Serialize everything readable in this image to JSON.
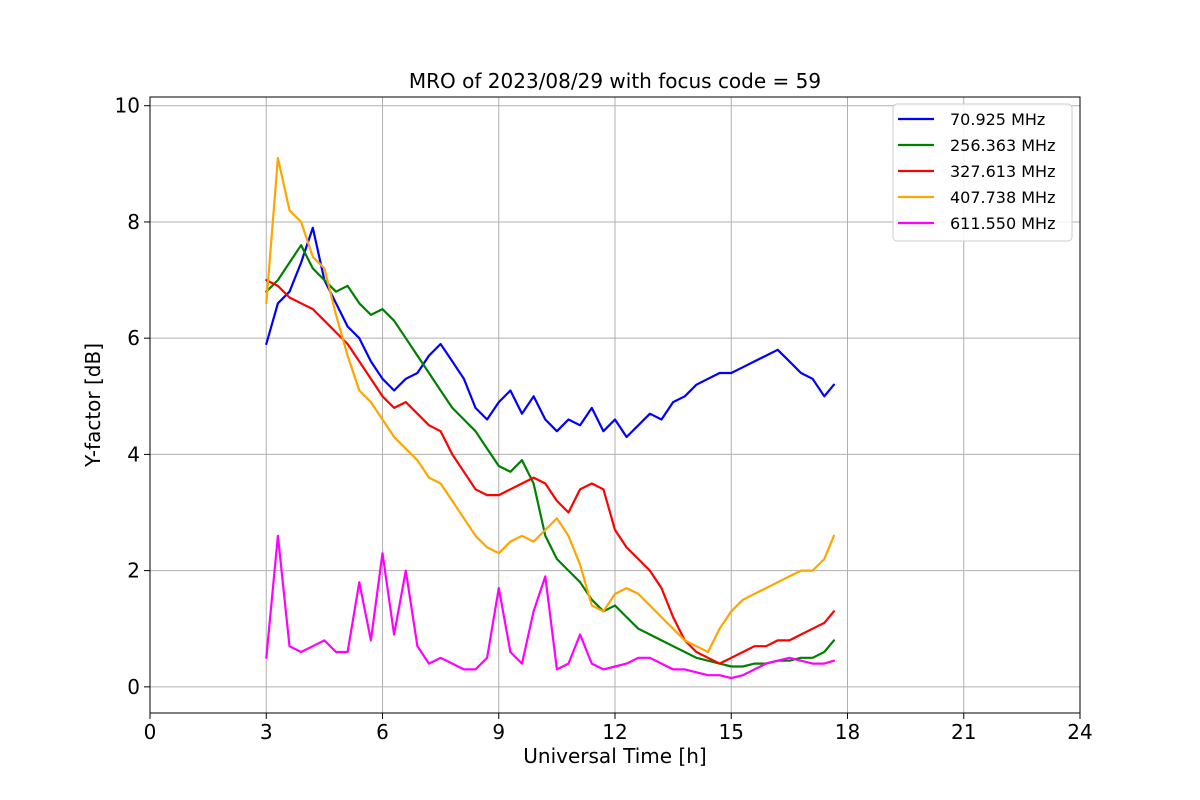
{
  "chart_data": {
    "type": "line",
    "title": "MRO of 2023/08/29 with focus code = 59",
    "xlabel": "Universal Time [h]",
    "ylabel": "Y-factor [dB]",
    "xlim": [
      0,
      24
    ],
    "ylim": [
      -0.45,
      10.15
    ],
    "xticks": [
      0,
      3,
      6,
      9,
      12,
      15,
      18,
      21,
      24
    ],
    "yticks": [
      0,
      2,
      4,
      6,
      8,
      10
    ],
    "grid": true,
    "legend_position": "top-right",
    "series": [
      {
        "name": " 70.925 MHz",
        "color": "#0000ff",
        "x": [
          3.0,
          3.3,
          3.6,
          3.9,
          4.2,
          4.5,
          4.8,
          5.1,
          5.4,
          5.7,
          6.0,
          6.3,
          6.6,
          6.9,
          7.2,
          7.5,
          7.8,
          8.1,
          8.4,
          8.7,
          9.0,
          9.3,
          9.6,
          9.9,
          10.2,
          10.5,
          10.8,
          11.1,
          11.4,
          11.7,
          12.0,
          12.3,
          12.6,
          12.9,
          13.2,
          13.5,
          13.8,
          14.1,
          14.4,
          14.7,
          15.0,
          15.3,
          15.6,
          15.9,
          16.2,
          16.5,
          16.8,
          17.1,
          17.4,
          17.65
        ],
        "y": [
          5.9,
          6.6,
          6.8,
          7.3,
          7.9,
          7.0,
          6.6,
          6.2,
          6.0,
          5.6,
          5.3,
          5.1,
          5.3,
          5.4,
          5.7,
          5.9,
          5.6,
          5.3,
          4.8,
          4.6,
          4.9,
          5.1,
          4.7,
          5.0,
          4.6,
          4.4,
          4.6,
          4.5,
          4.8,
          4.4,
          4.6,
          4.3,
          4.5,
          4.7,
          4.6,
          4.9,
          5.0,
          5.2,
          5.3,
          5.4,
          5.4,
          5.5,
          5.6,
          5.7,
          5.8,
          5.6,
          5.4,
          5.3,
          5.0,
          5.2
        ]
      },
      {
        "name": "256.363 MHz",
        "color": "#008000",
        "x": [
          3.0,
          3.3,
          3.6,
          3.9,
          4.2,
          4.5,
          4.8,
          5.1,
          5.4,
          5.7,
          6.0,
          6.3,
          6.6,
          6.9,
          7.2,
          7.5,
          7.8,
          8.1,
          8.4,
          8.7,
          9.0,
          9.3,
          9.6,
          9.9,
          10.2,
          10.5,
          10.8,
          11.1,
          11.4,
          11.7,
          12.0,
          12.3,
          12.6,
          12.9,
          13.2,
          13.5,
          13.8,
          14.1,
          14.4,
          14.7,
          15.0,
          15.3,
          15.6,
          15.9,
          16.2,
          16.5,
          16.8,
          17.1,
          17.4,
          17.65
        ],
        "y": [
          6.8,
          7.0,
          7.3,
          7.6,
          7.2,
          7.0,
          6.8,
          6.9,
          6.6,
          6.4,
          6.5,
          6.3,
          6.0,
          5.7,
          5.4,
          5.1,
          4.8,
          4.6,
          4.4,
          4.1,
          3.8,
          3.7,
          3.9,
          3.5,
          2.6,
          2.2,
          2.0,
          1.8,
          1.5,
          1.3,
          1.4,
          1.2,
          1.0,
          0.9,
          0.8,
          0.7,
          0.6,
          0.5,
          0.45,
          0.4,
          0.35,
          0.35,
          0.4,
          0.4,
          0.45,
          0.45,
          0.5,
          0.5,
          0.6,
          0.8
        ]
      },
      {
        "name": "327.613 MHz",
        "color": "#ff0000",
        "x": [
          3.0,
          3.3,
          3.6,
          3.9,
          4.2,
          4.5,
          4.8,
          5.1,
          5.4,
          5.7,
          6.0,
          6.3,
          6.6,
          6.9,
          7.2,
          7.5,
          7.8,
          8.1,
          8.4,
          8.7,
          9.0,
          9.3,
          9.6,
          9.9,
          10.2,
          10.5,
          10.8,
          11.1,
          11.4,
          11.7,
          12.0,
          12.3,
          12.6,
          12.9,
          13.2,
          13.5,
          13.8,
          14.1,
          14.4,
          14.7,
          15.0,
          15.3,
          15.6,
          15.9,
          16.2,
          16.5,
          16.8,
          17.1,
          17.4,
          17.65
        ],
        "y": [
          7.0,
          6.9,
          6.7,
          6.6,
          6.5,
          6.3,
          6.1,
          5.9,
          5.6,
          5.3,
          5.0,
          4.8,
          4.9,
          4.7,
          4.5,
          4.4,
          4.0,
          3.7,
          3.4,
          3.3,
          3.3,
          3.4,
          3.5,
          3.6,
          3.5,
          3.2,
          3.0,
          3.4,
          3.5,
          3.4,
          2.7,
          2.4,
          2.2,
          2.0,
          1.7,
          1.2,
          0.8,
          0.6,
          0.5,
          0.4,
          0.5,
          0.6,
          0.7,
          0.7,
          0.8,
          0.8,
          0.9,
          1.0,
          1.1,
          1.3
        ]
      },
      {
        "name": "407.738 MHz",
        "color": "#ffa500",
        "x": [
          3.0,
          3.3,
          3.6,
          3.9,
          4.2,
          4.5,
          4.8,
          5.1,
          5.4,
          5.7,
          6.0,
          6.3,
          6.6,
          6.9,
          7.2,
          7.5,
          7.8,
          8.1,
          8.4,
          8.7,
          9.0,
          9.3,
          9.6,
          9.9,
          10.2,
          10.5,
          10.8,
          11.1,
          11.4,
          11.7,
          12.0,
          12.3,
          12.6,
          12.9,
          13.2,
          13.5,
          13.8,
          14.1,
          14.4,
          14.7,
          15.0,
          15.3,
          15.6,
          15.9,
          16.2,
          16.5,
          16.8,
          17.1,
          17.4,
          17.65
        ],
        "y": [
          6.6,
          9.1,
          8.2,
          8.0,
          7.4,
          7.2,
          6.4,
          5.7,
          5.1,
          4.9,
          4.6,
          4.3,
          4.1,
          3.9,
          3.6,
          3.5,
          3.2,
          2.9,
          2.6,
          2.4,
          2.3,
          2.5,
          2.6,
          2.5,
          2.7,
          2.9,
          2.6,
          2.1,
          1.4,
          1.3,
          1.6,
          1.7,
          1.6,
          1.4,
          1.2,
          1.0,
          0.8,
          0.7,
          0.6,
          1.0,
          1.3,
          1.5,
          1.6,
          1.7,
          1.8,
          1.9,
          2.0,
          2.0,
          2.2,
          2.6
        ]
      },
      {
        "name": "611.550 MHz",
        "color": "#ff00ff",
        "x": [
          3.0,
          3.3,
          3.6,
          3.9,
          4.2,
          4.5,
          4.8,
          5.1,
          5.4,
          5.7,
          6.0,
          6.3,
          6.6,
          6.9,
          7.2,
          7.5,
          7.8,
          8.1,
          8.4,
          8.7,
          9.0,
          9.3,
          9.6,
          9.9,
          10.2,
          10.5,
          10.8,
          11.1,
          11.4,
          11.7,
          12.0,
          12.3,
          12.6,
          12.9,
          13.2,
          13.5,
          13.8,
          14.1,
          14.4,
          14.7,
          15.0,
          15.3,
          15.6,
          15.9,
          16.2,
          16.5,
          16.8,
          17.1,
          17.4,
          17.65
        ],
        "y": [
          0.5,
          2.6,
          0.7,
          0.6,
          0.7,
          0.8,
          0.6,
          0.6,
          1.8,
          0.8,
          2.3,
          0.9,
          2.0,
          0.7,
          0.4,
          0.5,
          0.4,
          0.3,
          0.3,
          0.5,
          1.7,
          0.6,
          0.4,
          1.3,
          1.9,
          0.3,
          0.4,
          0.9,
          0.4,
          0.3,
          0.35,
          0.4,
          0.5,
          0.5,
          0.4,
          0.3,
          0.3,
          0.25,
          0.2,
          0.2,
          0.15,
          0.2,
          0.3,
          0.4,
          0.45,
          0.5,
          0.45,
          0.4,
          0.4,
          0.45
        ]
      }
    ]
  }
}
